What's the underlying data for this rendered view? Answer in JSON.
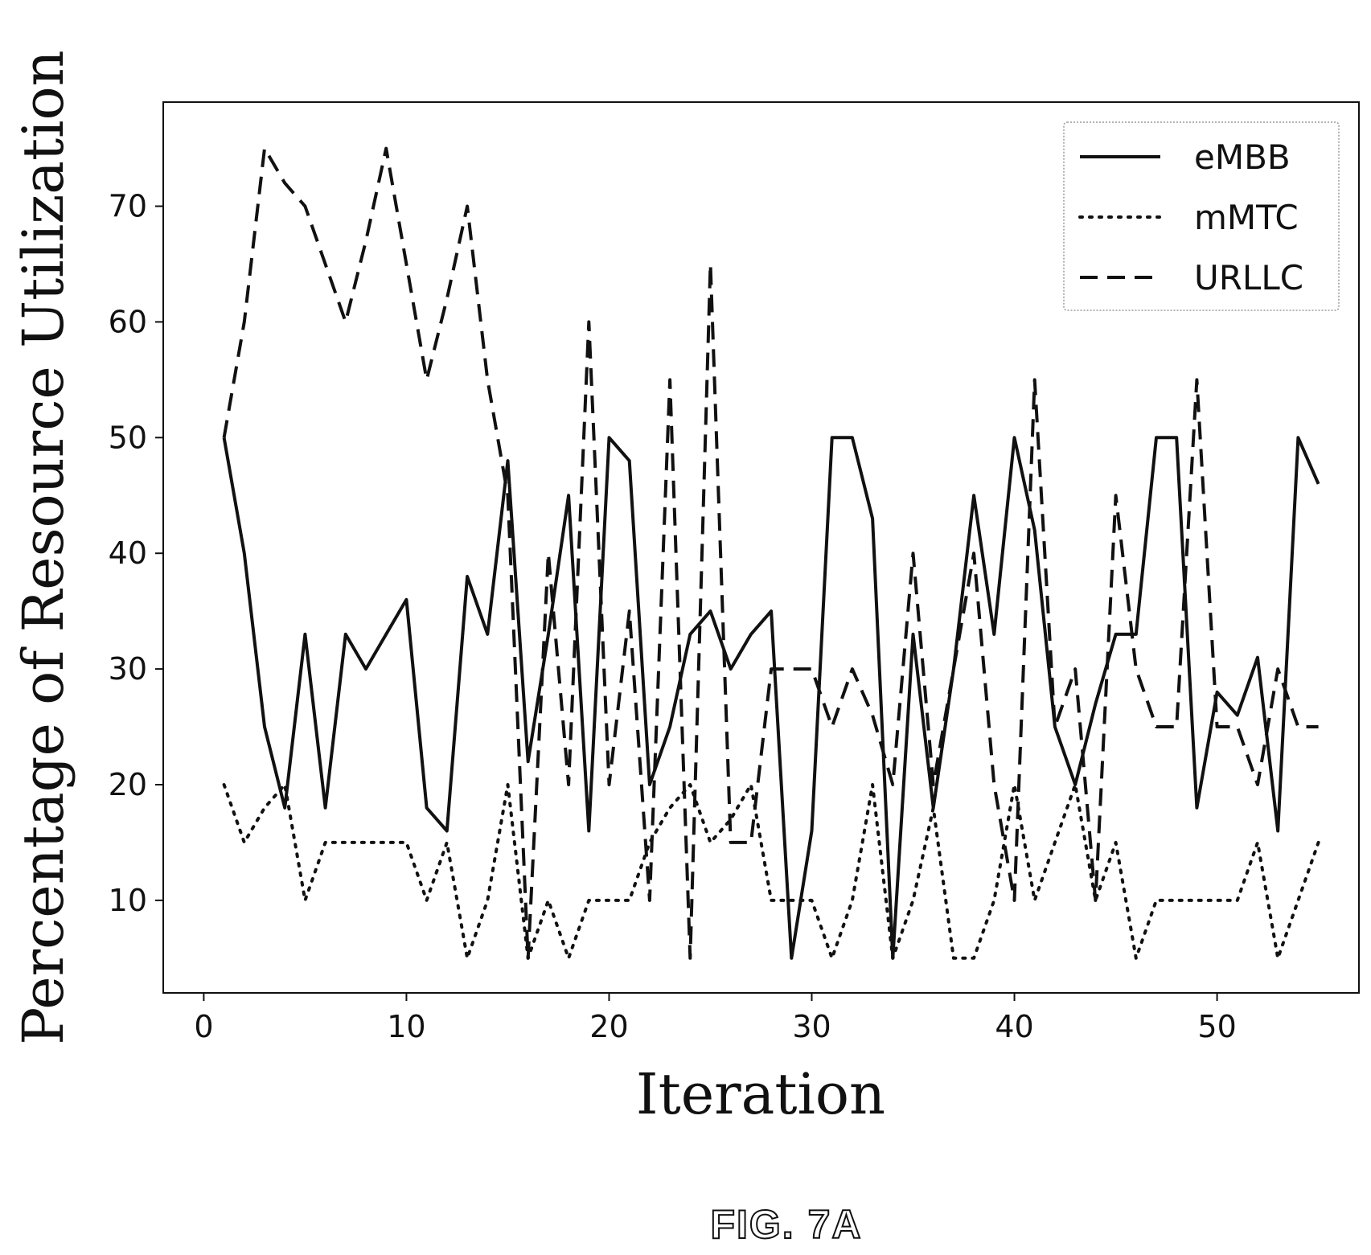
{
  "figure_label": "FIG. 7A",
  "chart_data": {
    "type": "line",
    "xlabel": "Iteration",
    "ylabel": "Percentage of Resource Utilization",
    "xlim": [
      -2,
      57
    ],
    "ylim": [
      2,
      79
    ],
    "xticks": [
      0,
      10,
      20,
      30,
      40,
      50
    ],
    "yticks": [
      10,
      20,
      30,
      40,
      50,
      60,
      70
    ],
    "grid": false,
    "legend": "top-right",
    "x": [
      1,
      2,
      3,
      4,
      5,
      6,
      7,
      8,
      9,
      10,
      11,
      12,
      13,
      14,
      15,
      16,
      17,
      18,
      19,
      20,
      21,
      22,
      23,
      24,
      25,
      26,
      27,
      28,
      29,
      30,
      31,
      32,
      33,
      34,
      35,
      36,
      37,
      38,
      39,
      40,
      41,
      42,
      43,
      44,
      45,
      46,
      47,
      48,
      49,
      50,
      51,
      52,
      53,
      54,
      55
    ],
    "series": [
      {
        "name": "eMBB",
        "style": "solid",
        "values": [
          50,
          40,
          25,
          18,
          33,
          18,
          33,
          30,
          33,
          36,
          18,
          16,
          38,
          33,
          48,
          22,
          33,
          45,
          16,
          50,
          48,
          20,
          25,
          33,
          35,
          30,
          33,
          35,
          5,
          16,
          50,
          50,
          43,
          5,
          33,
          18,
          30,
          45,
          33,
          50,
          42,
          25,
          20,
          27,
          33,
          33,
          50,
          50,
          18,
          28,
          26,
          31,
          16,
          50,
          46
        ]
      },
      {
        "name": "mMTC",
        "style": "dotted",
        "values": [
          20,
          15,
          18,
          20,
          10,
          15,
          15,
          15,
          15,
          15,
          10,
          15,
          5,
          10,
          20,
          5,
          10,
          5,
          10,
          10,
          10,
          15,
          18,
          20,
          15,
          17,
          20,
          10,
          10,
          10,
          5,
          10,
          20,
          5,
          10,
          18,
          5,
          5,
          10,
          20,
          10,
          15,
          20,
          10,
          15,
          5,
          10,
          10,
          10,
          10,
          10,
          15,
          5,
          10,
          15
        ]
      },
      {
        "name": "URLLC",
        "style": "dashed",
        "values": [
          50,
          60,
          75,
          72,
          70,
          65,
          60,
          67,
          75,
          65,
          55,
          62,
          70,
          55,
          45,
          5,
          40,
          20,
          60,
          20,
          35,
          10,
          55,
          5,
          65,
          15,
          15,
          30,
          30,
          30,
          25,
          30,
          26,
          20,
          40,
          20,
          30,
          40,
          20,
          10,
          55,
          25,
          30,
          10,
          45,
          30,
          25,
          25,
          55,
          25,
          25,
          20,
          30,
          25,
          25
        ]
      }
    ]
  }
}
